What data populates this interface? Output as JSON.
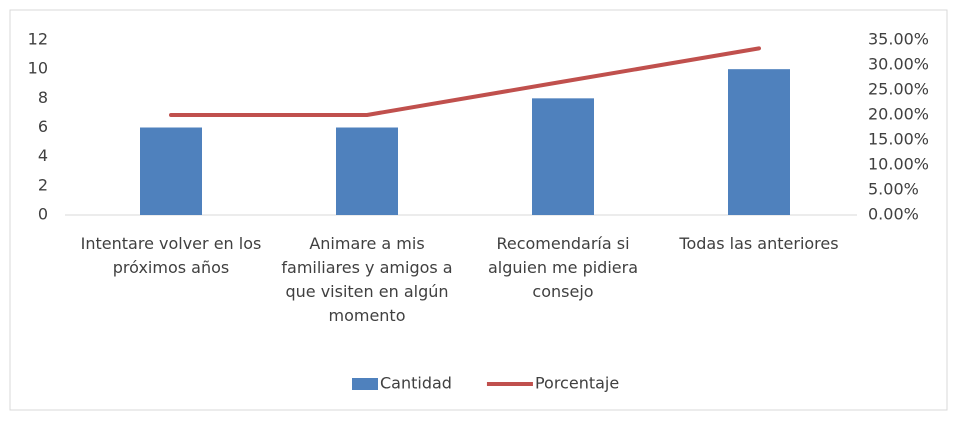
{
  "chart_data": {
    "type": "bar",
    "categories": [
      "Intentare volver en los próximos años",
      "Animare a mis familiares y amigos a que visiten en algún momento",
      "Recomendaría si alguien me pidiera consejo",
      "Todas las anteriores"
    ],
    "series": [
      {
        "name": "Cantidad",
        "type": "bar",
        "color": "#4f81bd",
        "values": [
          6,
          6,
          8,
          10
        ]
      },
      {
        "name": "Porcentaje",
        "type": "line",
        "axis": "y2",
        "color": "#c0504d",
        "values": [
          20,
          20,
          26.67,
          33.33
        ]
      }
    ],
    "ylim": [
      0,
      12
    ],
    "yticks": [
      0,
      2,
      4,
      6,
      8,
      10,
      12
    ],
    "y2lim": [
      0,
      35
    ],
    "y2ticks": [
      {
        "value": 0,
        "label": "0.00%"
      },
      {
        "value": 5,
        "label": "5.00%"
      },
      {
        "value": 10,
        "label": "10.00%"
      },
      {
        "value": 15,
        "label": "15.00%"
      },
      {
        "value": 20,
        "label": "20.00%"
      },
      {
        "value": 25,
        "label": "25.00%"
      },
      {
        "value": 30,
        "label": "30.00%"
      },
      {
        "value": 35,
        "label": "35.00%"
      }
    ],
    "grid": false,
    "legend": "bottom"
  }
}
